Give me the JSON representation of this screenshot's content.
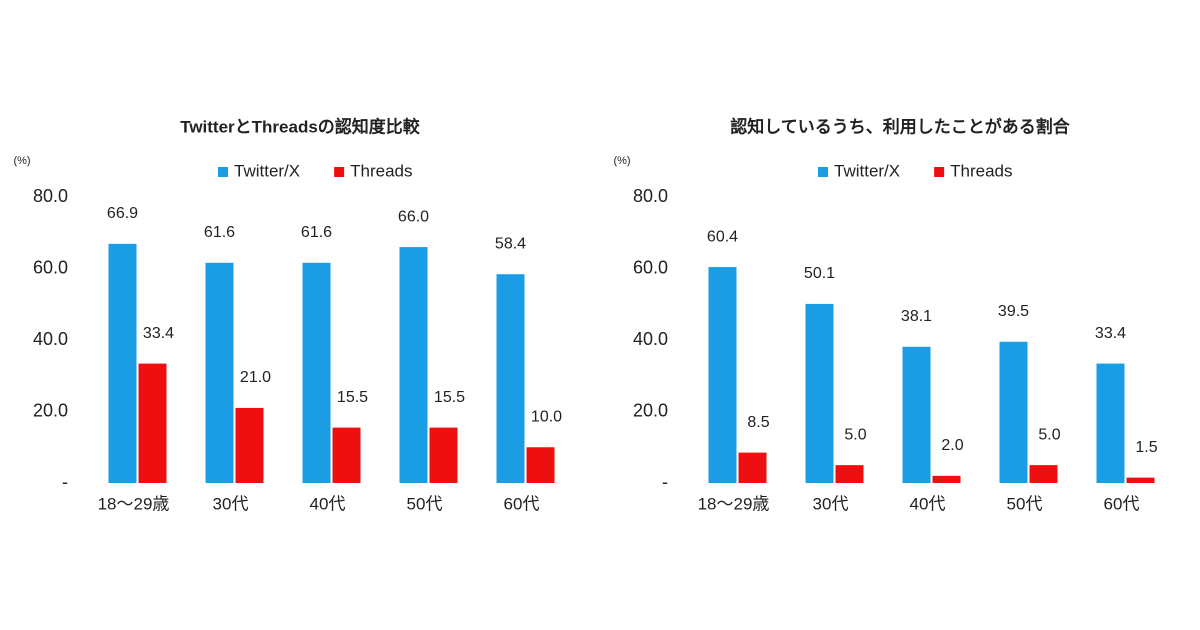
{
  "chart_data": [
    {
      "type": "bar",
      "title": "TwitterとThreadsの認知度比較",
      "ylabel": "(%)",
      "categories": [
        "18〜29歳",
        "30代",
        "40代",
        "50代",
        "60代"
      ],
      "series": [
        {
          "name": "Twitter/X",
          "color": "#1b9de5",
          "label_color": "#3ea3e0",
          "values": [
            66.9,
            61.6,
            61.6,
            66.0,
            58.4
          ],
          "value_labels": [
            "66.9",
            "61.6",
            "61.6",
            "66.0",
            "58.4"
          ]
        },
        {
          "name": "Threads",
          "color": "#ee1010",
          "label_color": "#e2283c",
          "values": [
            33.4,
            21.0,
            15.5,
            15.5,
            10.0
          ],
          "value_labels": [
            "33.4",
            "21.0",
            "15.5",
            "15.5",
            "10.0"
          ]
        }
      ],
      "ylim": [
        0,
        80
      ],
      "yticks": [
        {
          "value": 0,
          "label": "-"
        },
        {
          "value": 20,
          "label": "20.0"
        },
        {
          "value": 40,
          "label": "40.0"
        },
        {
          "value": 60,
          "label": "60.0"
        },
        {
          "value": 80,
          "label": "80.0"
        }
      ],
      "legend": "top"
    },
    {
      "type": "bar",
      "title": "認知しているうち、利用したことがある割合",
      "ylabel": "(%)",
      "categories": [
        "18〜29歳",
        "30代",
        "40代",
        "50代",
        "60代"
      ],
      "series": [
        {
          "name": "Twitter/X",
          "color": "#1b9de5",
          "label_color": "#3ea3e0",
          "values": [
            60.4,
            50.1,
            38.1,
            39.5,
            33.4
          ],
          "value_labels": [
            "60.4",
            "50.1",
            "38.1",
            "39.5",
            "33.4"
          ]
        },
        {
          "name": "Threads",
          "color": "#ee1010",
          "label_color": "#e2283c",
          "values": [
            8.5,
            5.0,
            2.0,
            5.0,
            1.5
          ],
          "value_labels": [
            "8.5",
            "5.0",
            "2.0",
            "5.0",
            "1.5"
          ]
        }
      ],
      "ylim": [
        0,
        80
      ],
      "yticks": [
        {
          "value": 0,
          "label": "-"
        },
        {
          "value": 20,
          "label": "20.0"
        },
        {
          "value": 40,
          "label": "40.0"
        },
        {
          "value": 60,
          "label": "60.0"
        },
        {
          "value": 80,
          "label": "80.0"
        }
      ],
      "legend": "top"
    }
  ]
}
